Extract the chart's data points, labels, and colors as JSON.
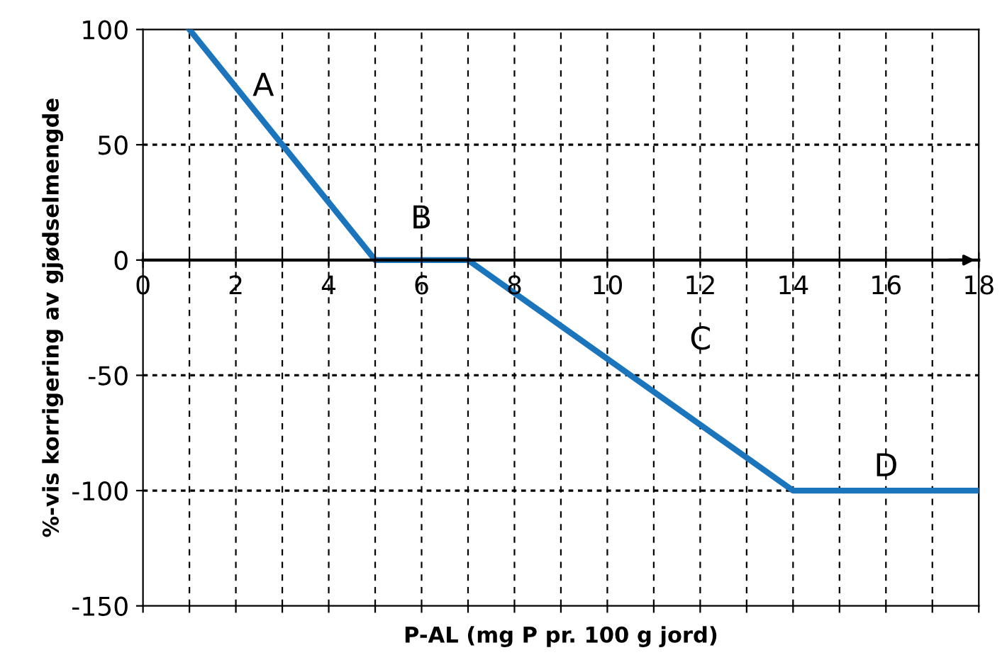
{
  "chart_data": {
    "type": "line",
    "xlabel": "P-AL (mg P pr. 100 g jord)",
    "ylabel": "%-vis korrigering av gjødselmengde",
    "x": [
      1,
      5,
      7,
      14,
      18
    ],
    "series": [
      {
        "color": "#1b75bc",
        "values": [
          100,
          0,
          0,
          -100,
          -100
        ]
      }
    ],
    "xlim": [
      0,
      18
    ],
    "ylim": [
      -150,
      100
    ],
    "xticks": [
      0,
      {
        "value": 1,
        "label": null
      },
      2,
      {
        "value": 3,
        "label": null
      },
      4,
      {
        "value": 5,
        "label": null
      },
      6,
      {
        "value": 7,
        "label": null
      },
      8,
      {
        "value": 9,
        "label": null
      },
      10,
      {
        "value": 11,
        "label": null
      },
      12,
      {
        "value": 13,
        "label": null
      },
      14,
      {
        "value": 15,
        "label": null
      },
      16,
      {
        "value": 17,
        "label": null
      },
      18
    ],
    "yticks": [
      -150,
      -100,
      -50,
      0,
      50,
      100
    ],
    "grid": true,
    "marker": "none",
    "line_style": "solid",
    "legend": false,
    "annotations": [
      "A",
      "B",
      "C",
      "D"
    ]
  }
}
